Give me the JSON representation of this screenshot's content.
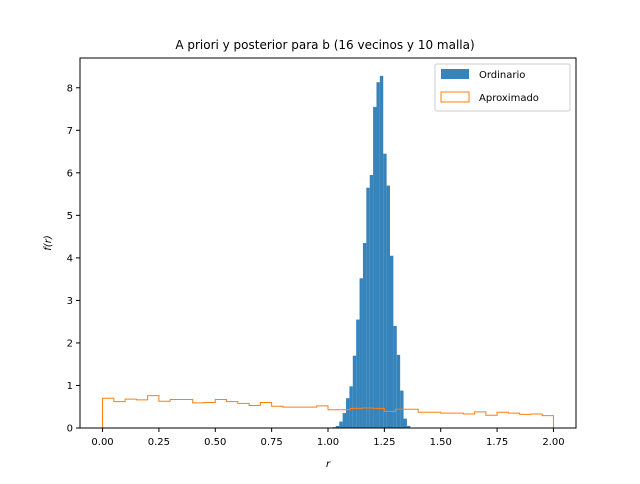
{
  "chart_data": {
    "type": "bar",
    "title": "A priori y posterior para b (16 vecinos y 10 malla)",
    "xlabel": "r",
    "ylabel": "f(r)",
    "xlim": [
      -0.1,
      2.1
    ],
    "ylim": [
      0,
      8.7
    ],
    "xticks": [
      0.0,
      0.25,
      0.5,
      0.75,
      1.0,
      1.25,
      1.5,
      1.75,
      2.0
    ],
    "xtick_labels": [
      "0.00",
      "0.25",
      "0.50",
      "0.75",
      "1.00",
      "1.25",
      "1.50",
      "1.75",
      "2.00"
    ],
    "yticks": [
      0,
      1,
      2,
      3,
      4,
      5,
      6,
      7,
      8
    ],
    "ytick_labels": [
      "0",
      "1",
      "2",
      "3",
      "4",
      "5",
      "6",
      "7",
      "8"
    ],
    "legend_position": "top-right",
    "series": [
      {
        "name": "Ordinario",
        "style": "filled",
        "color": "#1f77b4",
        "bin_edges": [
          1.02,
          1.035,
          1.05,
          1.065,
          1.08,
          1.095,
          1.11,
          1.125,
          1.14,
          1.155,
          1.17,
          1.185,
          1.2,
          1.215,
          1.23,
          1.245,
          1.26,
          1.275,
          1.29,
          1.305,
          1.32,
          1.335,
          1.35,
          1.365
        ],
        "values": [
          0.02,
          0.05,
          0.15,
          0.35,
          0.7,
          0.98,
          1.7,
          2.55,
          3.52,
          4.35,
          5.65,
          5.95,
          7.55,
          8.13,
          8.28,
          6.45,
          5.7,
          4.05,
          2.4,
          1.72,
          0.88,
          0.22,
          0.05
        ]
      },
      {
        "name": "Aproximado",
        "style": "step",
        "color": "#ff7f0e",
        "bin_edges": [
          0.0,
          0.05,
          0.1,
          0.15,
          0.2,
          0.25,
          0.3,
          0.35,
          0.4,
          0.45,
          0.5,
          0.55,
          0.6,
          0.65,
          0.7,
          0.75,
          0.8,
          0.85,
          0.9,
          0.95,
          1.0,
          1.05,
          1.1,
          1.15,
          1.2,
          1.25,
          1.3,
          1.35,
          1.4,
          1.45,
          1.5,
          1.55,
          1.6,
          1.65,
          1.7,
          1.75,
          1.8,
          1.85,
          1.9,
          1.95,
          2.0
        ],
        "values": [
          0.7,
          0.62,
          0.68,
          0.66,
          0.76,
          0.63,
          0.67,
          0.67,
          0.59,
          0.6,
          0.67,
          0.62,
          0.58,
          0.53,
          0.6,
          0.51,
          0.49,
          0.49,
          0.49,
          0.52,
          0.43,
          0.43,
          0.46,
          0.47,
          0.46,
          0.39,
          0.44,
          0.44,
          0.37,
          0.37,
          0.35,
          0.35,
          0.33,
          0.38,
          0.3,
          0.37,
          0.35,
          0.32,
          0.33,
          0.29
        ]
      }
    ]
  }
}
